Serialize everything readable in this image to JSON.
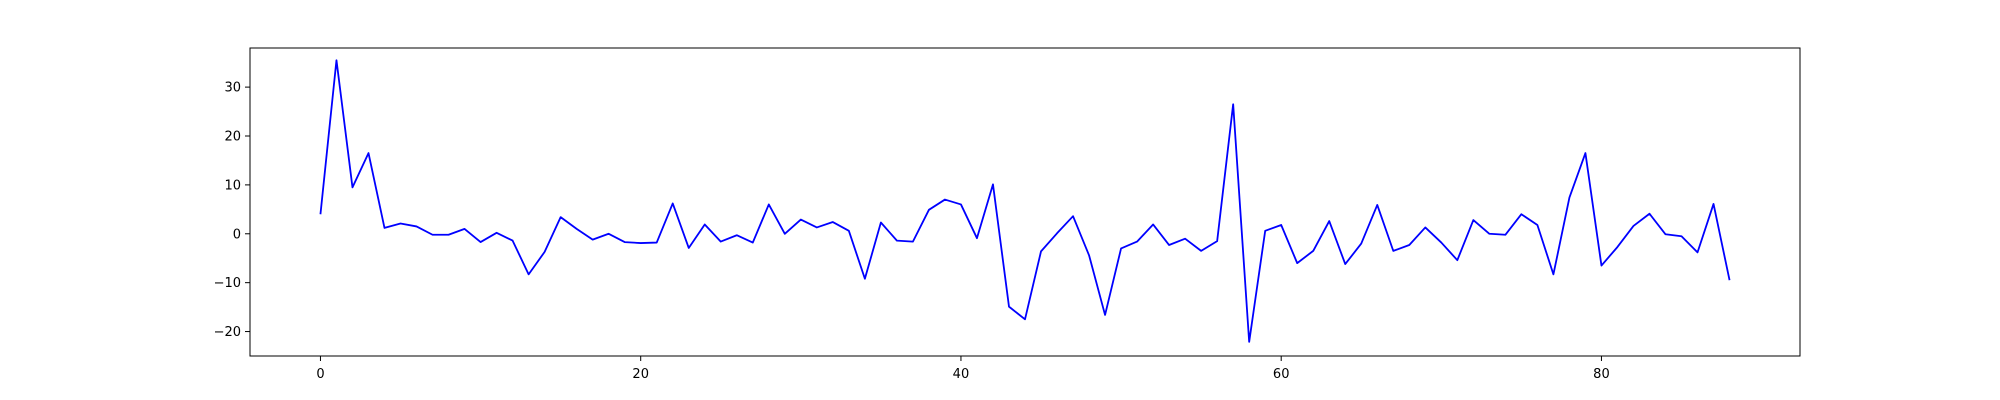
{
  "chart_data": {
    "type": "line",
    "title": "",
    "xlabel": "",
    "ylabel": "",
    "xlim": [
      -4.4,
      92.4
    ],
    "ylim": [
      -25,
      38
    ],
    "xticks": [
      0,
      20,
      40,
      60,
      80
    ],
    "yticks": [
      -20,
      -10,
      0,
      10,
      20,
      30
    ],
    "xtick_labels": [
      "0",
      "20",
      "40",
      "60",
      "80"
    ],
    "ytick_labels": [
      "−20",
      "−10",
      "0",
      "10",
      "20",
      "30"
    ],
    "grid": false,
    "legend": "none",
    "series": [
      {
        "color": "#0000ff",
        "x": [
          0,
          1,
          2,
          3,
          4,
          5,
          6,
          7,
          8,
          9,
          10,
          11,
          12,
          13,
          14,
          15,
          16,
          17,
          18,
          19,
          20,
          21,
          22,
          23,
          24,
          25,
          26,
          27,
          28,
          29,
          30,
          31,
          32,
          33,
          34,
          35,
          36,
          37,
          38,
          39,
          40,
          41,
          42,
          43,
          44,
          45,
          46,
          47,
          48,
          49,
          50,
          51,
          52,
          53,
          54,
          55,
          56,
          57,
          58,
          59,
          60,
          61,
          62,
          63,
          64,
          65,
          66,
          67,
          68,
          69,
          70,
          71,
          72,
          73,
          74,
          75,
          76,
          77,
          78,
          79,
          80,
          81,
          82,
          83,
          84,
          85,
          86,
          87,
          88
        ],
        "values": [
          4.0,
          35.5,
          9.5,
          16.5,
          1.2,
          2.1,
          1.5,
          -0.2,
          -0.2,
          1.0,
          -1.7,
          0.2,
          -1.4,
          -8.3,
          -3.7,
          3.4,
          1.0,
          -1.2,
          0.0,
          -1.7,
          -1.9,
          -1.8,
          6.2,
          -2.9,
          1.9,
          -1.6,
          -0.3,
          -1.8,
          6.0,
          0.0,
          2.9,
          1.3,
          2.4,
          0.6,
          -9.2,
          2.3,
          -1.4,
          -1.6,
          4.9,
          7.0,
          6.0,
          -0.9,
          10.1,
          -14.9,
          -17.5,
          -3.6,
          0.1,
          3.6,
          -4.4,
          -16.6,
          -3.0,
          -1.6,
          1.9,
          -2.3,
          -1.0,
          -3.5,
          -1.5,
          26.5,
          -22.1,
          0.6,
          1.8,
          -6.0,
          -3.5,
          2.6,
          -6.2,
          -2.0,
          5.9,
          -3.5,
          -2.3,
          1.3,
          -1.8,
          -5.4,
          2.8,
          0.0,
          -0.2,
          4.0,
          1.8,
          -8.3,
          7.4,
          16.5,
          -6.5,
          -2.7,
          1.6,
          4.1,
          -0.1,
          -0.5,
          -3.8,
          6.1,
          -9.5
        ]
      }
    ]
  }
}
